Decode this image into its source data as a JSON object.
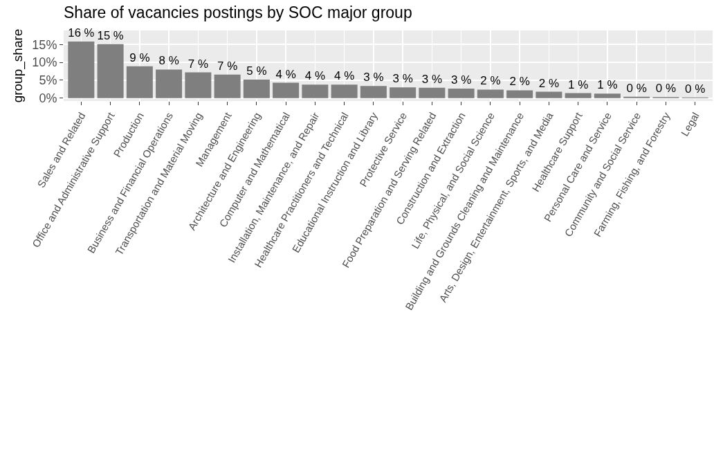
{
  "chart_data": {
    "type": "bar",
    "title": "Share of vacancies postings by SOC major group",
    "ylabel": "group_share",
    "categories": [
      "Sales and Related",
      "Office and Administrative Support",
      "Production",
      "Business and Financial Operations",
      "Transportation and Material Moving",
      "Management",
      "Architecture and Engineering",
      "Computer and Mathematical",
      "Installation, Maintenance, and Repair",
      "Healthcare Practitioners and Technical",
      "Educational Instruction and Library",
      "Protective Service",
      "Food Preparation and Serving Related",
      "Construction and Extraction",
      "Life, Physical, and Social Science",
      "Building and Grounds Cleaning and Maintenance",
      "Arts, Design, Entertainment, Sports, and Media",
      "Healthcare Support",
      "Personal Care and Service",
      "Community and Social Service",
      "Farming, Fishing, and Forestry",
      "Legal"
    ],
    "values": [
      15.8,
      15.1,
      8.9,
      8.0,
      7.2,
      6.6,
      5.2,
      4.3,
      3.8,
      3.8,
      3.4,
      3.0,
      2.9,
      2.7,
      2.4,
      2.2,
      1.8,
      1.4,
      1.3,
      0.4,
      0.3,
      0.2
    ],
    "value_labels": [
      "16 %",
      "15 %",
      "9 %",
      "8 %",
      "7 %",
      "7 %",
      "5 %",
      "4 %",
      "4 %",
      "4 %",
      "3 %",
      "3 %",
      "3 %",
      "3 %",
      "2 %",
      "2 %",
      "2 %",
      "1 %",
      "1 %",
      "0 %",
      "0 %",
      "0 %"
    ],
    "color": "#7f7f7f",
    "ylim": [
      -0.8,
      18.9
    ],
    "yticks": [
      {
        "value": 0,
        "label": "0%"
      },
      {
        "value": 5,
        "label": "5%"
      },
      {
        "value": 10,
        "label": "10%"
      },
      {
        "value": 15,
        "label": "15%"
      }
    ],
    "grid": true
  }
}
